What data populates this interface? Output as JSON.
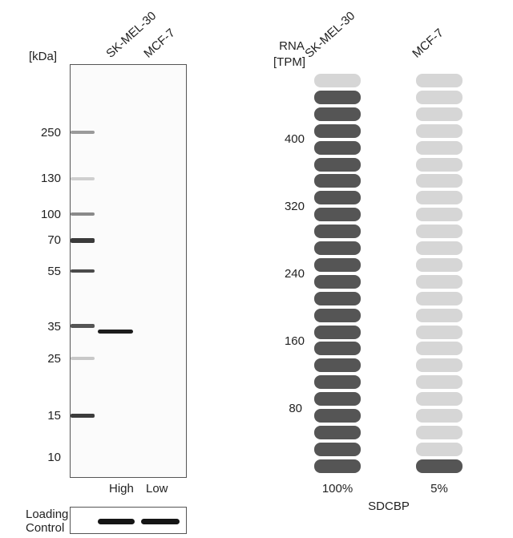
{
  "western_blot": {
    "unit_label": "[kDa]",
    "lanes": [
      "SK-MEL-30",
      "MCF-7"
    ],
    "markers": [
      "250",
      "130",
      "100",
      "70",
      "55",
      "35",
      "25",
      "15",
      "10"
    ],
    "lane_levels": [
      "High",
      "Low"
    ],
    "loading_control_label_line1": "Loading",
    "loading_control_label_line2": "Control"
  },
  "rna": {
    "axis_label_line1": "RNA",
    "axis_label_line2": "[TPM]",
    "cell_lines": [
      "SK-MEL-30",
      "MCF-7"
    ],
    "ticks": [
      "400",
      "320",
      "240",
      "160",
      "80"
    ],
    "percentages": [
      "100%",
      "5%"
    ],
    "gene": "SDCBP",
    "colors": {
      "filled": "#555555",
      "empty": "#d6d6d6"
    }
  },
  "chart_data": {
    "type": "bar",
    "categories": [
      "SK-MEL-30",
      "MCF-7"
    ],
    "series": [
      {
        "values": [
          100,
          5
        ]
      }
    ],
    "ylabel": "RNA [TPM]",
    "xlabel": "SDCBP",
    "segments_total": 24,
    "segments_filled": [
      23,
      1
    ]
  }
}
